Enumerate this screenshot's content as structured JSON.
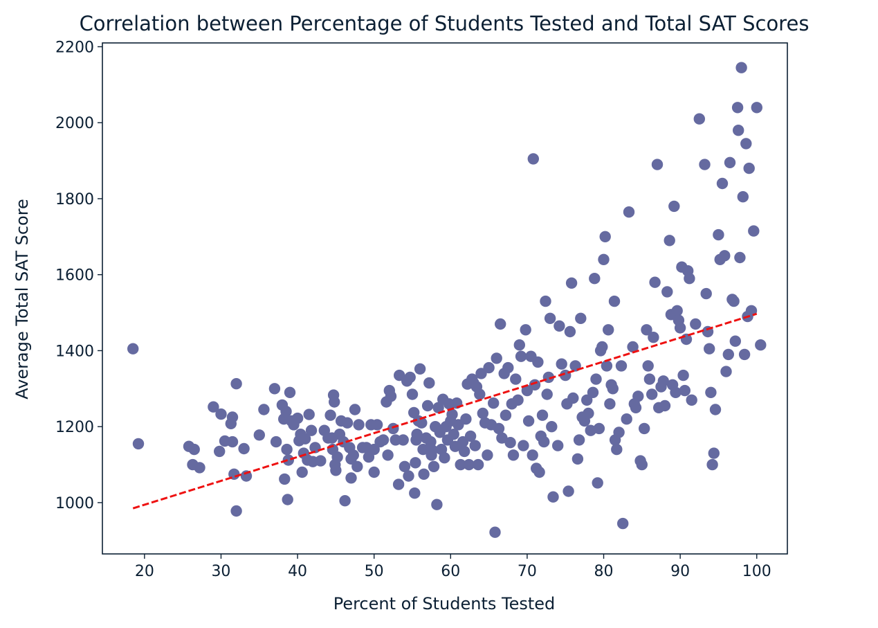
{
  "chart_data": {
    "type": "scatter",
    "title": "Correlation between Percentage of Students Tested and Total SAT Scores",
    "xlabel": "Percent of Students Tested",
    "ylabel": "Average Total SAT Score",
    "xlim": [
      14.5,
      104
    ],
    "ylim": [
      865,
      2210
    ],
    "xticks": [
      "20",
      "30",
      "40",
      "50",
      "60",
      "70",
      "80",
      "90",
      "100"
    ],
    "yticks": [
      "1000",
      "1200",
      "1400",
      "1600",
      "1800",
      "2000",
      "2200"
    ],
    "grid": false,
    "colors": {
      "points": "#656aa0",
      "trend": "#ee1111",
      "axis": "#0b1f33"
    },
    "trend_line": {
      "style": "dashed",
      "x": [
        18.5,
        100
      ],
      "y": [
        985,
        1497
      ]
    },
    "series": [
      {
        "points": [
          [
            18.5,
            1405
          ],
          [
            19.2,
            1155
          ],
          [
            25.8,
            1148
          ],
          [
            26.3,
            1100
          ],
          [
            26.5,
            1140
          ],
          [
            27.2,
            1092
          ],
          [
            29.0,
            1252
          ],
          [
            29.8,
            1135
          ],
          [
            30.0,
            1233
          ],
          [
            30.5,
            1162
          ],
          [
            31.3,
            1208
          ],
          [
            31.5,
            1225
          ],
          [
            31.5,
            1160
          ],
          [
            31.7,
            1075
          ],
          [
            32.0,
            1313
          ],
          [
            32.0,
            978
          ],
          [
            33.0,
            1142
          ],
          [
            33.3,
            1070
          ],
          [
            35.0,
            1178
          ],
          [
            35.6,
            1245
          ],
          [
            37.0,
            1300
          ],
          [
            37.2,
            1160
          ],
          [
            38.0,
            1257
          ],
          [
            38.2,
            1220
          ],
          [
            38.3,
            1062
          ],
          [
            38.5,
            1240
          ],
          [
            38.6,
            1140
          ],
          [
            38.7,
            1008
          ],
          [
            38.8,
            1112
          ],
          [
            39.0,
            1290
          ],
          [
            39.2,
            1215
          ],
          [
            39.5,
            1205
          ],
          [
            40.0,
            1222
          ],
          [
            40.2,
            1163
          ],
          [
            40.4,
            1180
          ],
          [
            40.6,
            1080
          ],
          [
            40.8,
            1130
          ],
          [
            41.0,
            1168
          ],
          [
            41.3,
            1112
          ],
          [
            41.5,
            1232
          ],
          [
            41.8,
            1190
          ],
          [
            42.0,
            1108
          ],
          [
            42.3,
            1145
          ],
          [
            43.0,
            1110
          ],
          [
            43.5,
            1190
          ],
          [
            44.0,
            1170
          ],
          [
            44.3,
            1230
          ],
          [
            44.5,
            1170
          ],
          [
            44.6,
            1140
          ],
          [
            44.7,
            1283
          ],
          [
            44.8,
            1265
          ],
          [
            44.9,
            1100
          ],
          [
            45.0,
            1085
          ],
          [
            45.2,
            1120
          ],
          [
            45.5,
            1180
          ],
          [
            45.7,
            1215
          ],
          [
            46.0,
            1160
          ],
          [
            46.2,
            1005
          ],
          [
            46.5,
            1210
          ],
          [
            46.8,
            1145
          ],
          [
            47.0,
            1115
          ],
          [
            47.0,
            1065
          ],
          [
            47.3,
            1125
          ],
          [
            47.5,
            1245
          ],
          [
            47.8,
            1095
          ],
          [
            48.0,
            1205
          ],
          [
            48.5,
            1145
          ],
          [
            49.0,
            1145
          ],
          [
            49.3,
            1120
          ],
          [
            49.6,
            1205
          ],
          [
            50.0,
            1140
          ],
          [
            50.0,
            1080
          ],
          [
            50.4,
            1205
          ],
          [
            50.8,
            1160
          ],
          [
            51.2,
            1165
          ],
          [
            51.6,
            1265
          ],
          [
            51.8,
            1125
          ],
          [
            52.0,
            1295
          ],
          [
            52.2,
            1280
          ],
          [
            52.5,
            1195
          ],
          [
            52.8,
            1165
          ],
          [
            53.2,
            1048
          ],
          [
            53.3,
            1335
          ],
          [
            53.8,
            1165
          ],
          [
            54.0,
            1095
          ],
          [
            54.3,
            1320
          ],
          [
            54.5,
            1070
          ],
          [
            54.7,
            1330
          ],
          [
            55.0,
            1285
          ],
          [
            55.2,
            1237
          ],
          [
            55.3,
            1025
          ],
          [
            55.4,
            1105
          ],
          [
            55.5,
            1165
          ],
          [
            55.6,
            1180
          ],
          [
            55.8,
            1215
          ],
          [
            56.0,
            1352
          ],
          [
            56.2,
            1210
          ],
          [
            56.4,
            1140
          ],
          [
            56.5,
            1075
          ],
          [
            56.8,
            1170
          ],
          [
            57.0,
            1255
          ],
          [
            57.2,
            1315
          ],
          [
            57.4,
            1160
          ],
          [
            57.5,
            1125
          ],
          [
            57.6,
            1138
          ],
          [
            57.8,
            1095
          ],
          [
            58.0,
            1200
          ],
          [
            58.2,
            995
          ],
          [
            58.4,
            1250
          ],
          [
            58.6,
            1185
          ],
          [
            58.8,
            1140
          ],
          [
            59.0,
            1272
          ],
          [
            59.2,
            1118
          ],
          [
            59.4,
            1200
          ],
          [
            59.6,
            1165
          ],
          [
            59.8,
            1260
          ],
          [
            60.0,
            1215
          ],
          [
            60.2,
            1232
          ],
          [
            60.4,
            1180
          ],
          [
            60.6,
            1148
          ],
          [
            60.8,
            1262
          ],
          [
            61.0,
            1205
          ],
          [
            61.3,
            1100
          ],
          [
            61.6,
            1160
          ],
          [
            61.8,
            1135
          ],
          [
            62.0,
            1220
          ],
          [
            62.2,
            1312
          ],
          [
            62.4,
            1100
          ],
          [
            62.6,
            1175
          ],
          [
            62.8,
            1325
          ],
          [
            63.0,
            1315
          ],
          [
            63.2,
            1150
          ],
          [
            63.4,
            1305
          ],
          [
            63.6,
            1100
          ],
          [
            63.8,
            1285
          ],
          [
            64.0,
            1340
          ],
          [
            64.2,
            1235
          ],
          [
            64.5,
            1210
          ],
          [
            64.8,
            1125
          ],
          [
            65.0,
            1355
          ],
          [
            65.3,
            1205
          ],
          [
            65.6,
            1262
          ],
          [
            65.8,
            922
          ],
          [
            66.0,
            1380
          ],
          [
            66.3,
            1195
          ],
          [
            66.5,
            1470
          ],
          [
            66.7,
            1170
          ],
          [
            67.0,
            1340
          ],
          [
            67.2,
            1230
          ],
          [
            67.5,
            1355
          ],
          [
            67.8,
            1158
          ],
          [
            68.0,
            1260
          ],
          [
            68.2,
            1125
          ],
          [
            68.5,
            1325
          ],
          [
            68.8,
            1270
          ],
          [
            69.0,
            1415
          ],
          [
            69.2,
            1385
          ],
          [
            69.5,
            1150
          ],
          [
            69.8,
            1455
          ],
          [
            70.0,
            1295
          ],
          [
            70.2,
            1215
          ],
          [
            70.5,
            1385
          ],
          [
            70.7,
            1125
          ],
          [
            70.8,
            1905
          ],
          [
            71.0,
            1310
          ],
          [
            71.2,
            1090
          ],
          [
            71.4,
            1370
          ],
          [
            71.6,
            1080
          ],
          [
            71.8,
            1175
          ],
          [
            72.0,
            1230
          ],
          [
            72.2,
            1160
          ],
          [
            72.4,
            1530
          ],
          [
            72.6,
            1285
          ],
          [
            72.8,
            1330
          ],
          [
            73.0,
            1485
          ],
          [
            73.2,
            1200
          ],
          [
            73.4,
            1015
          ],
          [
            74.0,
            1150
          ],
          [
            74.2,
            1465
          ],
          [
            74.5,
            1365
          ],
          [
            75.0,
            1335
          ],
          [
            75.2,
            1260
          ],
          [
            75.4,
            1030
          ],
          [
            75.6,
            1450
          ],
          [
            75.8,
            1578
          ],
          [
            76.0,
            1275
          ],
          [
            76.3,
            1360
          ],
          [
            76.6,
            1115
          ],
          [
            76.8,
            1165
          ],
          [
            77.0,
            1485
          ],
          [
            77.2,
            1225
          ],
          [
            77.5,
            1215
          ],
          [
            77.8,
            1270
          ],
          [
            78.0,
            1235
          ],
          [
            78.3,
            1190
          ],
          [
            78.6,
            1290
          ],
          [
            78.8,
            1590
          ],
          [
            79.0,
            1325
          ],
          [
            79.2,
            1052
          ],
          [
            79.4,
            1195
          ],
          [
            79.6,
            1400
          ],
          [
            79.8,
            1410
          ],
          [
            80.0,
            1640
          ],
          [
            80.2,
            1700
          ],
          [
            80.4,
            1360
          ],
          [
            80.6,
            1455
          ],
          [
            80.8,
            1260
          ],
          [
            81.0,
            1310
          ],
          [
            81.2,
            1300
          ],
          [
            81.4,
            1530
          ],
          [
            81.5,
            1165
          ],
          [
            81.7,
            1140
          ],
          [
            82.0,
            1185
          ],
          [
            82.3,
            1360
          ],
          [
            82.5,
            945
          ],
          [
            83.0,
            1220
          ],
          [
            83.3,
            1765
          ],
          [
            83.8,
            1410
          ],
          [
            84.0,
            1260
          ],
          [
            84.2,
            1250
          ],
          [
            84.5,
            1280
          ],
          [
            84.8,
            1110
          ],
          [
            85.0,
            1100
          ],
          [
            85.3,
            1195
          ],
          [
            85.6,
            1455
          ],
          [
            85.8,
            1360
          ],
          [
            86.0,
            1325
          ],
          [
            86.3,
            1285
          ],
          [
            86.5,
            1435
          ],
          [
            86.7,
            1580
          ],
          [
            87.0,
            1890
          ],
          [
            87.2,
            1250
          ],
          [
            87.5,
            1305
          ],
          [
            87.8,
            1320
          ],
          [
            88.0,
            1255
          ],
          [
            88.3,
            1555
          ],
          [
            88.6,
            1690
          ],
          [
            88.8,
            1495
          ],
          [
            89.0,
            1310
          ],
          [
            89.2,
            1780
          ],
          [
            89.4,
            1290
          ],
          [
            89.6,
            1505
          ],
          [
            89.8,
            1480
          ],
          [
            90.0,
            1460
          ],
          [
            90.2,
            1620
          ],
          [
            90.4,
            1335
          ],
          [
            90.6,
            1295
          ],
          [
            90.8,
            1430
          ],
          [
            91.0,
            1610
          ],
          [
            91.2,
            1590
          ],
          [
            91.5,
            1270
          ],
          [
            92.0,
            1470
          ],
          [
            92.5,
            2010
          ],
          [
            93.2,
            1890
          ],
          [
            93.4,
            1550
          ],
          [
            93.6,
            1450
          ],
          [
            93.8,
            1405
          ],
          [
            94.0,
            1290
          ],
          [
            94.2,
            1100
          ],
          [
            94.4,
            1130
          ],
          [
            94.6,
            1245
          ],
          [
            95.0,
            1705
          ],
          [
            95.2,
            1640
          ],
          [
            95.5,
            1840
          ],
          [
            95.8,
            1650
          ],
          [
            96.0,
            1345
          ],
          [
            96.3,
            1390
          ],
          [
            96.5,
            1895
          ],
          [
            96.8,
            1535
          ],
          [
            97.0,
            1530
          ],
          [
            97.2,
            1425
          ],
          [
            97.5,
            2040
          ],
          [
            97.6,
            1980
          ],
          [
            97.8,
            1645
          ],
          [
            98.0,
            2145
          ],
          [
            98.2,
            1805
          ],
          [
            98.4,
            1390
          ],
          [
            98.6,
            1945
          ],
          [
            98.8,
            1490
          ],
          [
            99.0,
            1880
          ],
          [
            99.3,
            1505
          ],
          [
            99.6,
            1715
          ],
          [
            100.0,
            2040
          ],
          [
            100.5,
            1415
          ]
        ]
      }
    ]
  }
}
